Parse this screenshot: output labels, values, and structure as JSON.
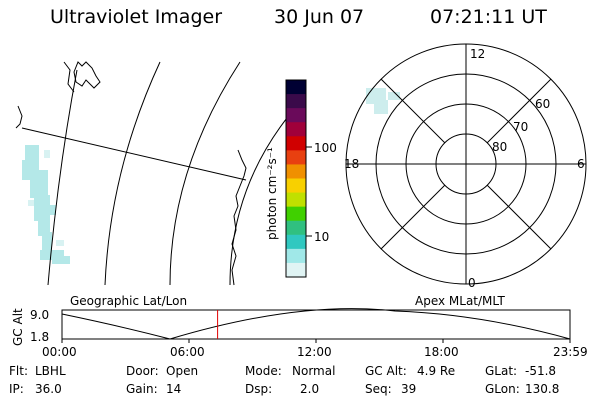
{
  "header": {
    "instrument": "Ultraviolet Imager",
    "date": "30 Jun 07",
    "time": "07:21:11 UT"
  },
  "colorbar": {
    "unit_label": "photon cm⁻²s⁻¹",
    "ticks": [
      {
        "label": "100",
        "value": 100
      },
      {
        "label": "10",
        "value": 10
      }
    ],
    "colors": [
      "#000033",
      "#3a0a4a",
      "#6a0a5a",
      "#a0003a",
      "#d00000",
      "#e84010",
      "#f09000",
      "#f8d000",
      "#c0e000",
      "#40d000",
      "#30c080",
      "#30c8c0",
      "#a0e8e8",
      "#e0f4f4"
    ]
  },
  "polar_plot": {
    "mlt_labels": {
      "top": "12",
      "bottom": "0",
      "left": "18",
      "right": "6"
    },
    "lat_labels": [
      "60",
      "70",
      "80"
    ]
  },
  "timeline": {
    "left_title": "Geographic Lat/Lon",
    "right_title": "Apex MLat/MLT",
    "y_axis_title": "GC Alt",
    "y_ticks": [
      "9.0",
      "1.8"
    ],
    "x_ticks": [
      "00:00",
      "06:00",
      "12:00",
      "18:00",
      "23:59"
    ],
    "current_time_hours": 7.35
  },
  "info": {
    "row1": [
      {
        "key": "Flt:",
        "value": "LBHL"
      },
      {
        "key": "Door:",
        "value": "Open"
      },
      {
        "key": "Mode:",
        "value": "Normal"
      },
      {
        "key": "GC Alt:",
        "value": "4.9 Re"
      },
      {
        "key": "GLat:",
        "value": "-51.8"
      }
    ],
    "row2": [
      {
        "key": "IP:",
        "value": "36.0"
      },
      {
        "key": "Gain:",
        "value": "14"
      },
      {
        "key": "Dsp:",
        "value": "2.0"
      },
      {
        "key": "Seq:",
        "value": "39"
      },
      {
        "key": "GLon:",
        "value": "130.8"
      }
    ]
  }
}
